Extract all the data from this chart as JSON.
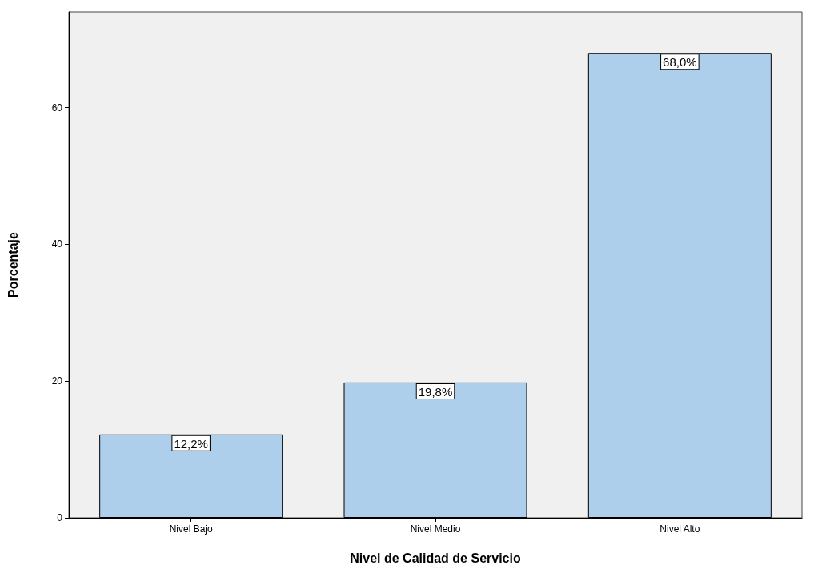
{
  "chart_data": {
    "type": "bar",
    "xlabel": "Nivel de Calidad de Servicio",
    "ylabel": "Porcentaje",
    "categories": [
      "Nivel Bajo",
      "Nivel Medio",
      "Nivel Alto"
    ],
    "values": [
      12.2,
      19.8,
      68.0
    ],
    "value_labels": [
      "12,2%",
      "19,8%",
      "68,0%"
    ],
    "color": "#aecfeb",
    "ylim": [
      0,
      74
    ],
    "yticks": [
      0,
      20,
      40,
      60
    ],
    "grid": false
  }
}
